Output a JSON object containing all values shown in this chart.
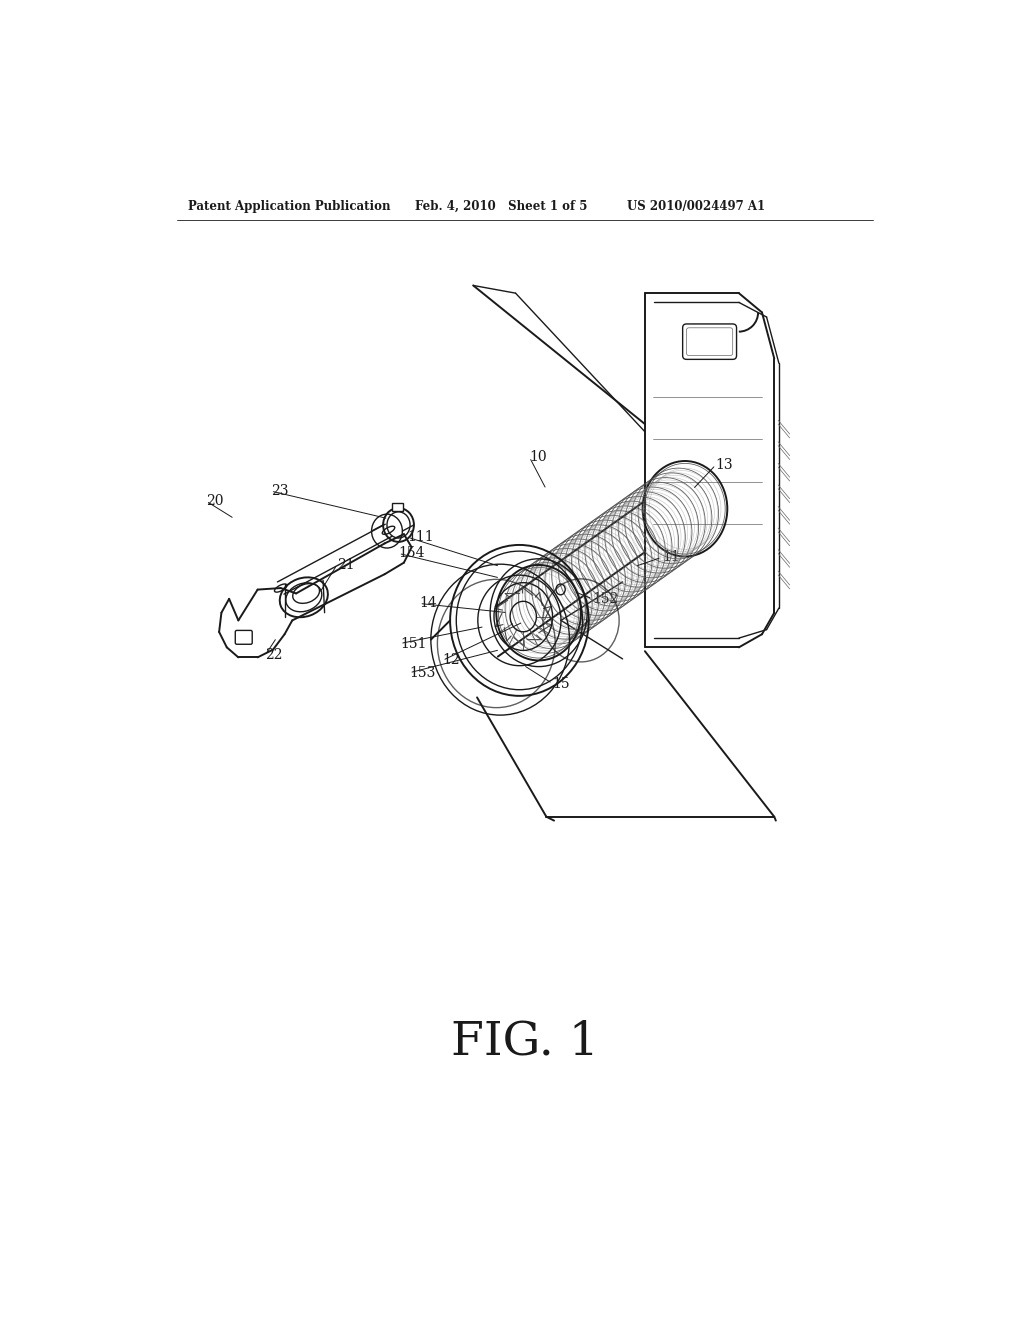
{
  "bg_color": "#ffffff",
  "line_color": "#1a1a1a",
  "header_left": "Patent Application Publication",
  "header_mid": "Feb. 4, 2010   Sheet 1 of 5",
  "header_right": "US 2010/0024497 A1",
  "figure_label": "FIG. 1",
  "lw": 1.0,
  "lw_thick": 1.4
}
